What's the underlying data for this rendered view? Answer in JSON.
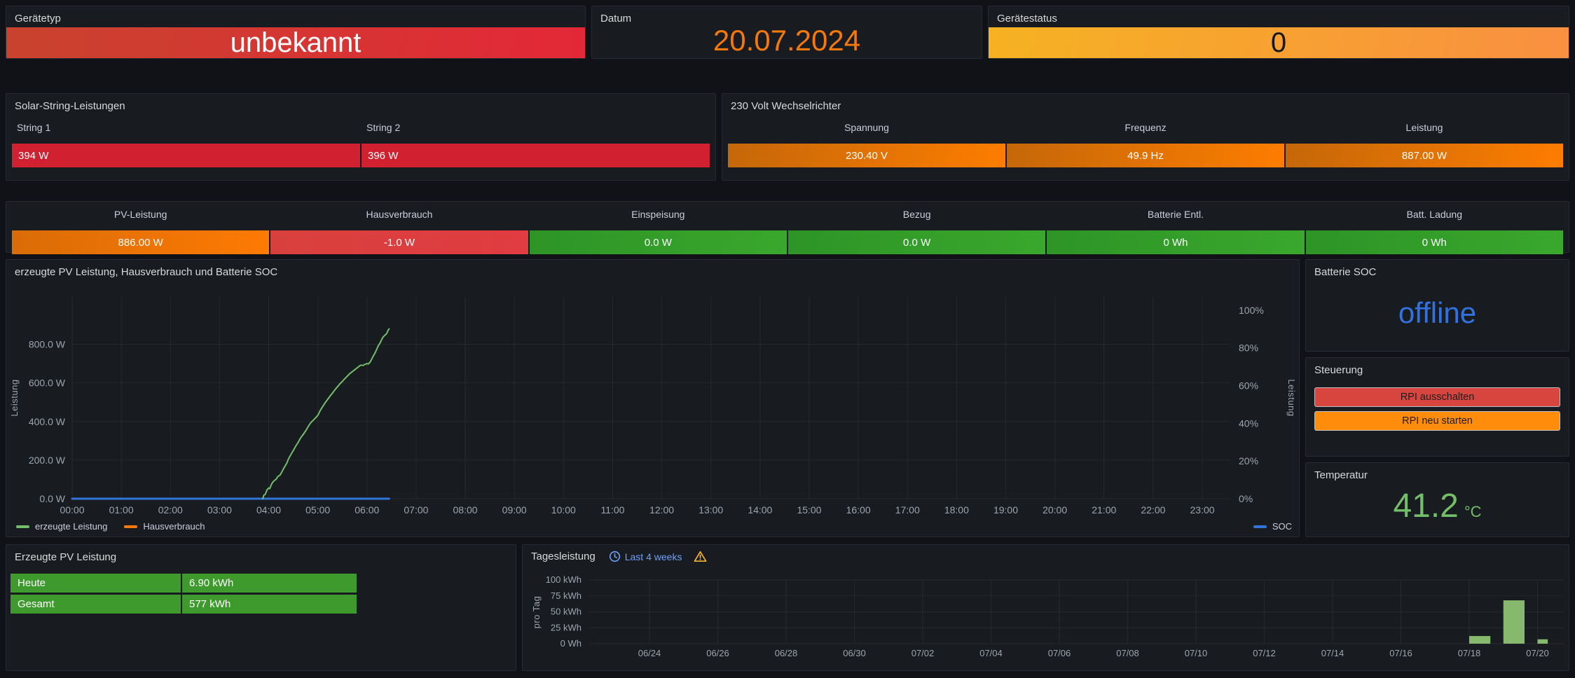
{
  "header": {
    "geraetetyp": {
      "title": "Gerätetyp",
      "value": "unbekannt"
    },
    "datum": {
      "title": "Datum",
      "value": "20.07.2024"
    },
    "geraetestatus": {
      "title": "Gerätestatus",
      "value": "0"
    }
  },
  "solar_strings": {
    "title": "Solar-String-Leistungen",
    "items": [
      {
        "label": "String 1",
        "value": "394 W"
      },
      {
        "label": "String 2",
        "value": "396 W"
      }
    ]
  },
  "wechselrichter": {
    "title": "230 Volt Wechselrichter",
    "items": [
      {
        "label": "Spannung",
        "value": "230.40 V"
      },
      {
        "label": "Frequenz",
        "value": "49.9 Hz"
      },
      {
        "label": "Leistung",
        "value": "887.00 W"
      }
    ]
  },
  "stats_row": {
    "items": [
      {
        "label": "PV-Leistung",
        "value": "886.00 W",
        "color": "orange"
      },
      {
        "label": "Hausverbrauch",
        "value": "-1.0 W",
        "color": "red"
      },
      {
        "label": "Einspeisung",
        "value": "0.0 W",
        "color": "green"
      },
      {
        "label": "Bezug",
        "value": "0.0 W",
        "color": "green"
      },
      {
        "label": "Batterie Entl.",
        "value": "0 Wh",
        "color": "green"
      },
      {
        "label": "Batt. Ladung",
        "value": "0 Wh",
        "color": "green"
      }
    ]
  },
  "battery_soc": {
    "title": "Batterie SOC",
    "value": "offline"
  },
  "steuerung": {
    "title": "Steuerung",
    "buttons": [
      {
        "label": "RPI ausschalten",
        "color": "#d8453f"
      },
      {
        "label": "RPI neu starten",
        "color": "#ff8c0a"
      }
    ]
  },
  "temperatur": {
    "title": "Temperatur",
    "value": "41.2",
    "unit": "°C"
  },
  "pv_table": {
    "title": "Erzeugte PV Leistung",
    "rows": [
      {
        "label": "Heute",
        "value": "6.90 kWh"
      },
      {
        "label": "Gesamt",
        "value": "577 kWh"
      }
    ]
  },
  "tagesleistung": {
    "title": "Tagesleistung",
    "time_range": "Last 4 weeks"
  },
  "chart_data": [
    {
      "type": "line",
      "title": "erzeugte PV Leistung, Hausverbrauch und Batterie SOC",
      "ylabel_left": "Leistung",
      "ylabel_right": "Leistung",
      "yticks_left": [
        "0.0 W",
        "200.0 W",
        "400.0 W",
        "600.0 W",
        "800.0 W"
      ],
      "ytick_values_left": [
        0,
        200,
        400,
        600,
        800
      ],
      "ylim_left": [
        0,
        1045
      ],
      "yticks_right": [
        "0%",
        "20%",
        "40%",
        "60%",
        "80%",
        "100%"
      ],
      "ytick_values_right": [
        0,
        20,
        40,
        60,
        80,
        100
      ],
      "ylim_right": [
        0,
        107
      ],
      "xticks": [
        "00:00",
        "01:00",
        "02:00",
        "03:00",
        "04:00",
        "05:00",
        "06:00",
        "07:00",
        "08:00",
        "09:00",
        "10:00",
        "11:00",
        "12:00",
        "13:00",
        "14:00",
        "15:00",
        "16:00",
        "17:00",
        "18:00",
        "19:00",
        "20:00",
        "21:00",
        "22:00",
        "23:00"
      ],
      "xlim_hours": [
        0,
        23.57
      ],
      "grid": true,
      "legend_position": "bottom",
      "series": [
        {
          "name": "Hausverbrauch",
          "color": "#ff780a",
          "axis": "left",
          "z": 1,
          "width": 2.5,
          "points": [
            [
              0,
              0
            ],
            [
              6.45,
              0
            ]
          ]
        },
        {
          "name": "SOC",
          "color": "#3274d9",
          "axis": "right",
          "z": 2,
          "width": 3,
          "points": [
            [
              0,
              0
            ],
            [
              6.45,
              0
            ]
          ]
        },
        {
          "name": "erzeugte Leistung",
          "color": "#73bf69",
          "axis": "left",
          "z": 3,
          "width": 2,
          "points": [
            [
              3.88,
              0
            ],
            [
              3.9,
              18
            ],
            [
              3.93,
              22
            ],
            [
              3.97,
              48
            ],
            [
              4.0,
              55
            ],
            [
              4.02,
              52
            ],
            [
              4.05,
              70
            ],
            [
              4.08,
              85
            ],
            [
              4.12,
              95
            ],
            [
              4.15,
              100
            ],
            [
              4.18,
              112
            ],
            [
              4.2,
              118
            ],
            [
              4.23,
              122
            ],
            [
              4.27,
              140
            ],
            [
              4.3,
              155
            ],
            [
              4.33,
              168
            ],
            [
              4.37,
              185
            ],
            [
              4.4,
              205
            ],
            [
              4.45,
              228
            ],
            [
              4.5,
              250
            ],
            [
              4.55,
              272
            ],
            [
              4.6,
              292
            ],
            [
              4.65,
              315
            ],
            [
              4.7,
              332
            ],
            [
              4.75,
              350
            ],
            [
              4.8,
              372
            ],
            [
              4.85,
              392
            ],
            [
              4.9,
              405
            ],
            [
              4.95,
              418
            ],
            [
              5.0,
              432
            ],
            [
              5.05,
              458
            ],
            [
              5.1,
              478
            ],
            [
              5.15,
              498
            ],
            [
              5.2,
              515
            ],
            [
              5.25,
              532
            ],
            [
              5.3,
              548
            ],
            [
              5.35,
              565
            ],
            [
              5.4,
              580
            ],
            [
              5.45,
              595
            ],
            [
              5.5,
              608
            ],
            [
              5.55,
              622
            ],
            [
              5.6,
              635
            ],
            [
              5.65,
              648
            ],
            [
              5.7,
              658
            ],
            [
              5.75,
              668
            ],
            [
              5.8,
              678
            ],
            [
              5.85,
              688
            ],
            [
              5.88,
              692
            ],
            [
              5.92,
              690
            ],
            [
              5.95,
              695
            ],
            [
              6.0,
              700
            ],
            [
              6.03,
              698
            ],
            [
              6.07,
              710
            ],
            [
              6.1,
              725
            ],
            [
              6.13,
              740
            ],
            [
              6.17,
              758
            ],
            [
              6.2,
              775
            ],
            [
              6.23,
              792
            ],
            [
              6.27,
              808
            ],
            [
              6.3,
              825
            ],
            [
              6.33,
              838
            ],
            [
              6.37,
              848
            ],
            [
              6.4,
              855
            ],
            [
              6.43,
              872
            ],
            [
              6.45,
              880
            ]
          ]
        }
      ],
      "legend_left": [
        "erzeugte Leistung",
        "Hausverbrauch"
      ],
      "legend_right": [
        "SOC"
      ]
    },
    {
      "type": "bar",
      "title": "Tagesleistung",
      "ylabel": "pro Tag",
      "yticks": [
        "0 Wh",
        "25 kWh",
        "50 kWh",
        "75 kWh",
        "100 kWh"
      ],
      "ytick_values": [
        0,
        25,
        50,
        75,
        100
      ],
      "ylim": [
        0,
        100
      ],
      "xticks": [
        "06/24",
        "06/26",
        "06/28",
        "06/30",
        "07/02",
        "07/04",
        "07/06",
        "07/08",
        "07/10",
        "07/12",
        "07/14",
        "07/16",
        "07/18",
        "07/20"
      ],
      "tick_days": [
        2,
        4,
        6,
        8,
        10,
        12,
        14,
        16,
        18,
        20,
        22,
        24,
        26,
        28
      ],
      "grid": true,
      "bar_color": "#86b96e",
      "bars": [
        {
          "date": "07/18",
          "day": 26,
          "value": 12,
          "width_days": 0.62
        },
        {
          "date": "07/19",
          "day": 27,
          "value": 68,
          "width_days": 0.62
        },
        {
          "date": "07/20",
          "day": 28,
          "value": 6.9,
          "width_days": 0.3
        }
      ]
    }
  ],
  "colors": {
    "canvas": "#111217",
    "panel": "#181b1f",
    "title_text": "#d8d9da",
    "red_bar": "#d1202f",
    "red_gradient": [
      "#c8432e",
      "#e32837"
    ],
    "orange": "#ff780a",
    "orange_gradient": [
      "#c56709",
      "#fd7d00"
    ],
    "status_gradient": [
      "#f6b222",
      "#f99041"
    ],
    "green_stat": "#35a02c",
    "green_table": "#3f9a2e",
    "green_line": "#73bf69",
    "green_bars": "#86b96e",
    "blue_soc": "#3274d9",
    "blue_offline": "#3172e0",
    "blue_range": "#6e9fff",
    "amber_warning": "#f8b133",
    "date_orange": "#f5790a",
    "axis_text": "#9da5af"
  }
}
